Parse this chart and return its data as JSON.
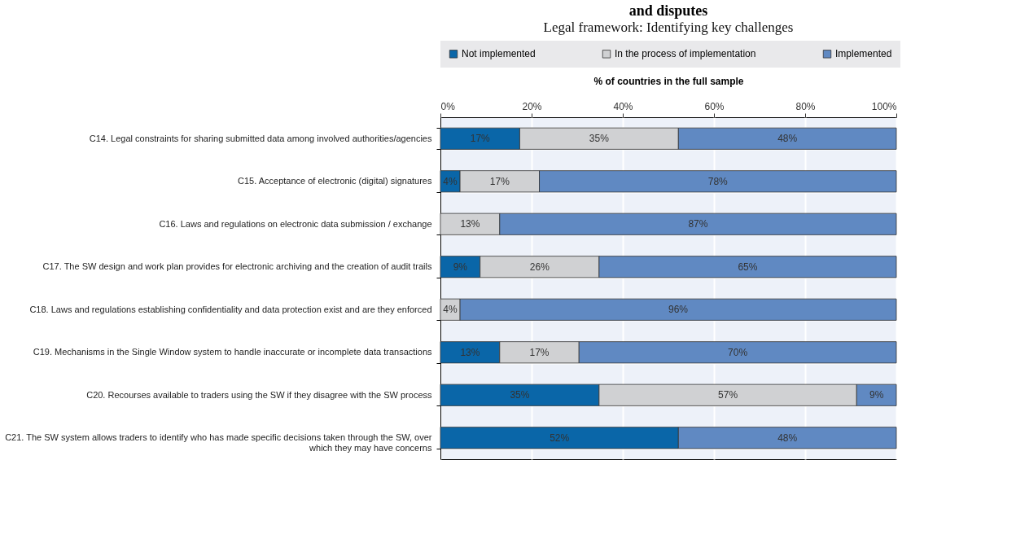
{
  "chart_data": {
    "type": "bar",
    "orientation": "horizontal",
    "stacked": true,
    "title": "and disputes",
    "subtitle": "Legal framework: Identifying key challenges",
    "xlabel": "% of countries in the full sample",
    "categories": [
      "C14. Legal constraints for sharing submitted data among involved authorities/agencies",
      "C15. Acceptance of electronic (digital) signatures",
      "C16. Laws and regulations on electronic data submission / exchange",
      "C17. The SW design and work plan provides for electronic archiving and the creation of audit trails",
      "C18. Laws and regulations establishing confidentiality and data protection exist and are they enforced",
      "C19. Mechanisms in the Single Window system to handle inaccurate or incomplete data transactions",
      "C20. Recourses available to traders using the SW if they disagree with the SW process",
      "C21. The SW system allows traders to identify who has made specific decisions taken through the SW, over which they may have concerns"
    ],
    "series": [
      {
        "name": "Not implemented",
        "color": "#0a66a8",
        "values": [
          17.4,
          4.3,
          null,
          8.7,
          null,
          13.0,
          34.8,
          52.2
        ],
        "value_labels": [
          "17%",
          "4%",
          null,
          "9%",
          null,
          "13%",
          "35%",
          "52%"
        ]
      },
      {
        "name": "In the process of implementation",
        "color": "#d0d1d3",
        "values": [
          34.8,
          17.4,
          13.0,
          26.1,
          4.3,
          17.4,
          56.5,
          null
        ],
        "value_labels": [
          "35%",
          "17%",
          "13%",
          "26%",
          "4%",
          "17%",
          "57%",
          null
        ]
      },
      {
        "name": "Implemented",
        "color": "#6089c2",
        "values": [
          47.8,
          78.3,
          87.0,
          65.2,
          95.7,
          69.6,
          8.7,
          47.8
        ],
        "value_labels": [
          "48%",
          "78%",
          "87%",
          "65%",
          "96%",
          "70%",
          "9%",
          "48%"
        ]
      }
    ],
    "xlim": [
      0,
      100
    ],
    "xticks": [
      {
        "value": 0,
        "label": "0%"
      },
      {
        "value": 20,
        "label": "20%"
      },
      {
        "value": 40,
        "label": "40%"
      },
      {
        "value": 60,
        "label": "60%"
      },
      {
        "value": 80,
        "label": "80%"
      },
      {
        "value": 100,
        "label": "100%"
      }
    ],
    "grid": true,
    "legend": "top"
  }
}
